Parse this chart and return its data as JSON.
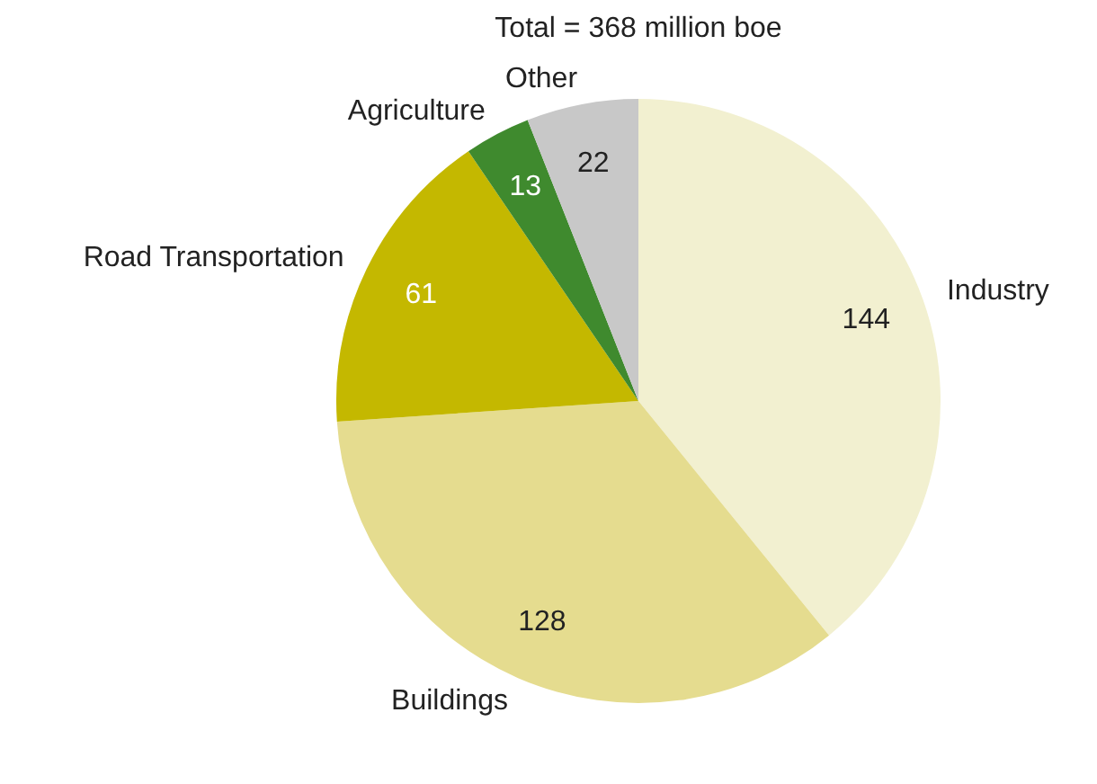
{
  "chart_data": {
    "type": "pie",
    "title": "Total = 368 million boe",
    "categories": [
      "Industry",
      "Buildings",
      "Road Transportation",
      "Agriculture",
      "Other"
    ],
    "values": [
      144,
      128,
      61,
      13,
      22
    ],
    "colors": [
      "#f2f0d0",
      "#e5dc8f",
      "#c4b800",
      "#3f8a2e",
      "#c8c8c8"
    ],
    "data_labels": true,
    "legend": false
  }
}
